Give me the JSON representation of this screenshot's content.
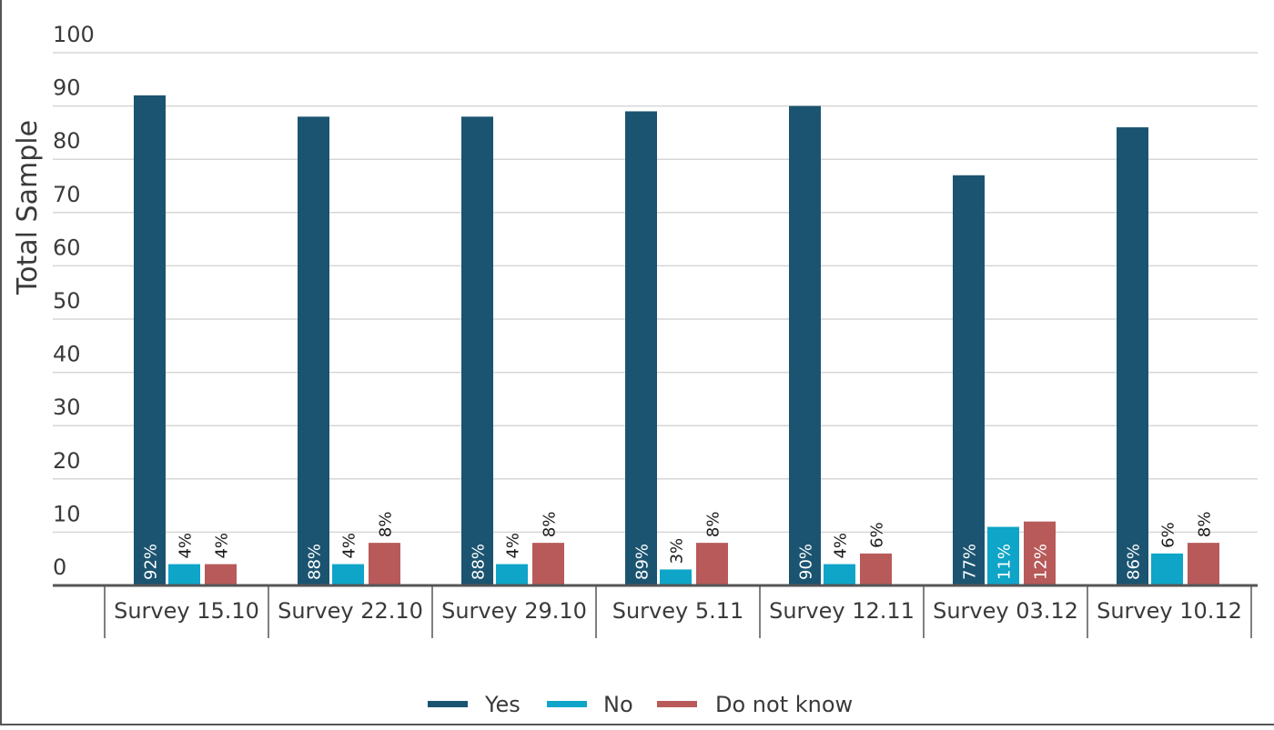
{
  "chart_data": {
    "type": "bar",
    "title": "",
    "xlabel": "",
    "ylabel": "Total Sample",
    "ylim": [
      0,
      100
    ],
    "yticks": [
      0,
      10,
      20,
      30,
      40,
      50,
      60,
      70,
      80,
      90,
      100
    ],
    "grid": true,
    "legend_position": "bottom",
    "categories": [
      "Survey 15.10",
      "Survey 22.10",
      "Survey 29.10",
      "Survey 5.11",
      "Survey 12.11",
      "Survey 03.12",
      "Survey 10.12"
    ],
    "series": [
      {
        "name": "Yes",
        "color": "#1b5470",
        "values": [
          92,
          88,
          88,
          89,
          90,
          77,
          86
        ],
        "labels": [
          "92%",
          "88%",
          "88%",
          "89%",
          "90%",
          "77%",
          "86%"
        ]
      },
      {
        "name": "No",
        "color": "#0ea5c8",
        "values": [
          4,
          4,
          4,
          3,
          4,
          11,
          6
        ],
        "labels": [
          "4%",
          "4%",
          "4%",
          "3%",
          "4%",
          "11%",
          "6%"
        ]
      },
      {
        "name": "Do not know",
        "color": "#b85a5a",
        "values": [
          4,
          8,
          8,
          8,
          6,
          12,
          8
        ],
        "labels": [
          "4%",
          "8%",
          "8%",
          "8%",
          "6%",
          "12%",
          "8%"
        ]
      }
    ]
  }
}
